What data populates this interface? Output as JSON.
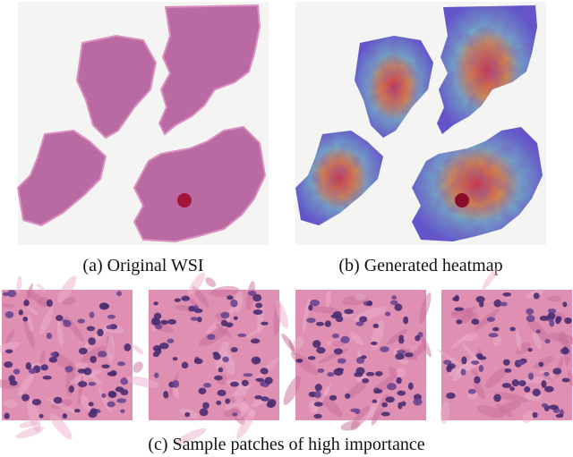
{
  "captions": {
    "original": "(a) Original WSI",
    "heatmap": "(b) Generated heatmap",
    "patches": "(c) Sample patches of high importance"
  }
}
